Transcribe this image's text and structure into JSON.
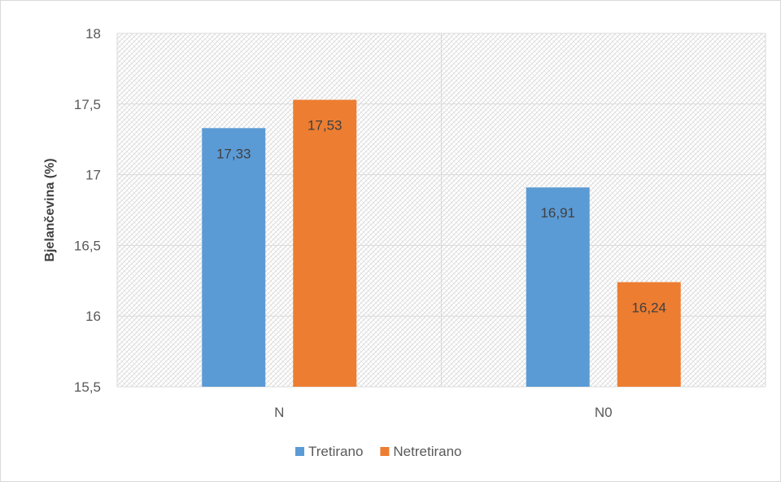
{
  "chart_data": {
    "type": "bar",
    "title": "",
    "xlabel": "",
    "ylabel": "Bjelančevina (%)",
    "ylim": [
      15.5,
      18
    ],
    "yticks": [
      "15,5",
      "16",
      "16,5",
      "17",
      "17,5",
      "18"
    ],
    "ytick_values": [
      15.5,
      16,
      16.5,
      17,
      17.5,
      18
    ],
    "categories": [
      "N",
      "N0"
    ],
    "series": [
      {
        "name": "Tretirano",
        "values": [
          17.33,
          16.91
        ],
        "labels": [
          "17,33",
          "16,91"
        ],
        "color": "#5b9bd5"
      },
      {
        "name": "Netretirano",
        "values": [
          17.53,
          16.24
        ],
        "labels": [
          "17,53",
          "16,24"
        ],
        "color": "#ed7d31"
      }
    ],
    "grid": true,
    "legend": "bottom"
  }
}
